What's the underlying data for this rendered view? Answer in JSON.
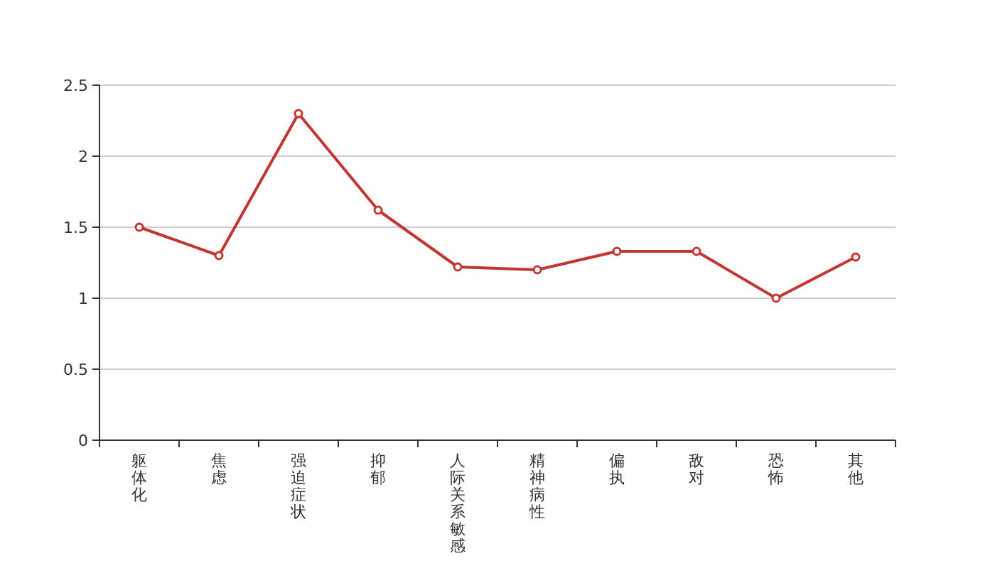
{
  "chart_data": {
    "type": "line",
    "categories": [
      "躯体化",
      "焦虑",
      "强迫症状",
      "抑郁",
      "人际关系敏感",
      "精神病性",
      "偏执",
      "敌对",
      "恐怖",
      "其他"
    ],
    "series": [
      {
        "color": "#c23531",
        "values": [
          1.5,
          1.3,
          2.3,
          1.62,
          1.22,
          1.2,
          1.33,
          1.33,
          1.0,
          1.29
        ]
      }
    ],
    "ylim": [
      0,
      2.5
    ],
    "yticks": [
      0,
      0.5,
      1,
      1.5,
      2,
      2.5
    ],
    "grid": "y",
    "marker": "circle",
    "line_style": "solid"
  }
}
